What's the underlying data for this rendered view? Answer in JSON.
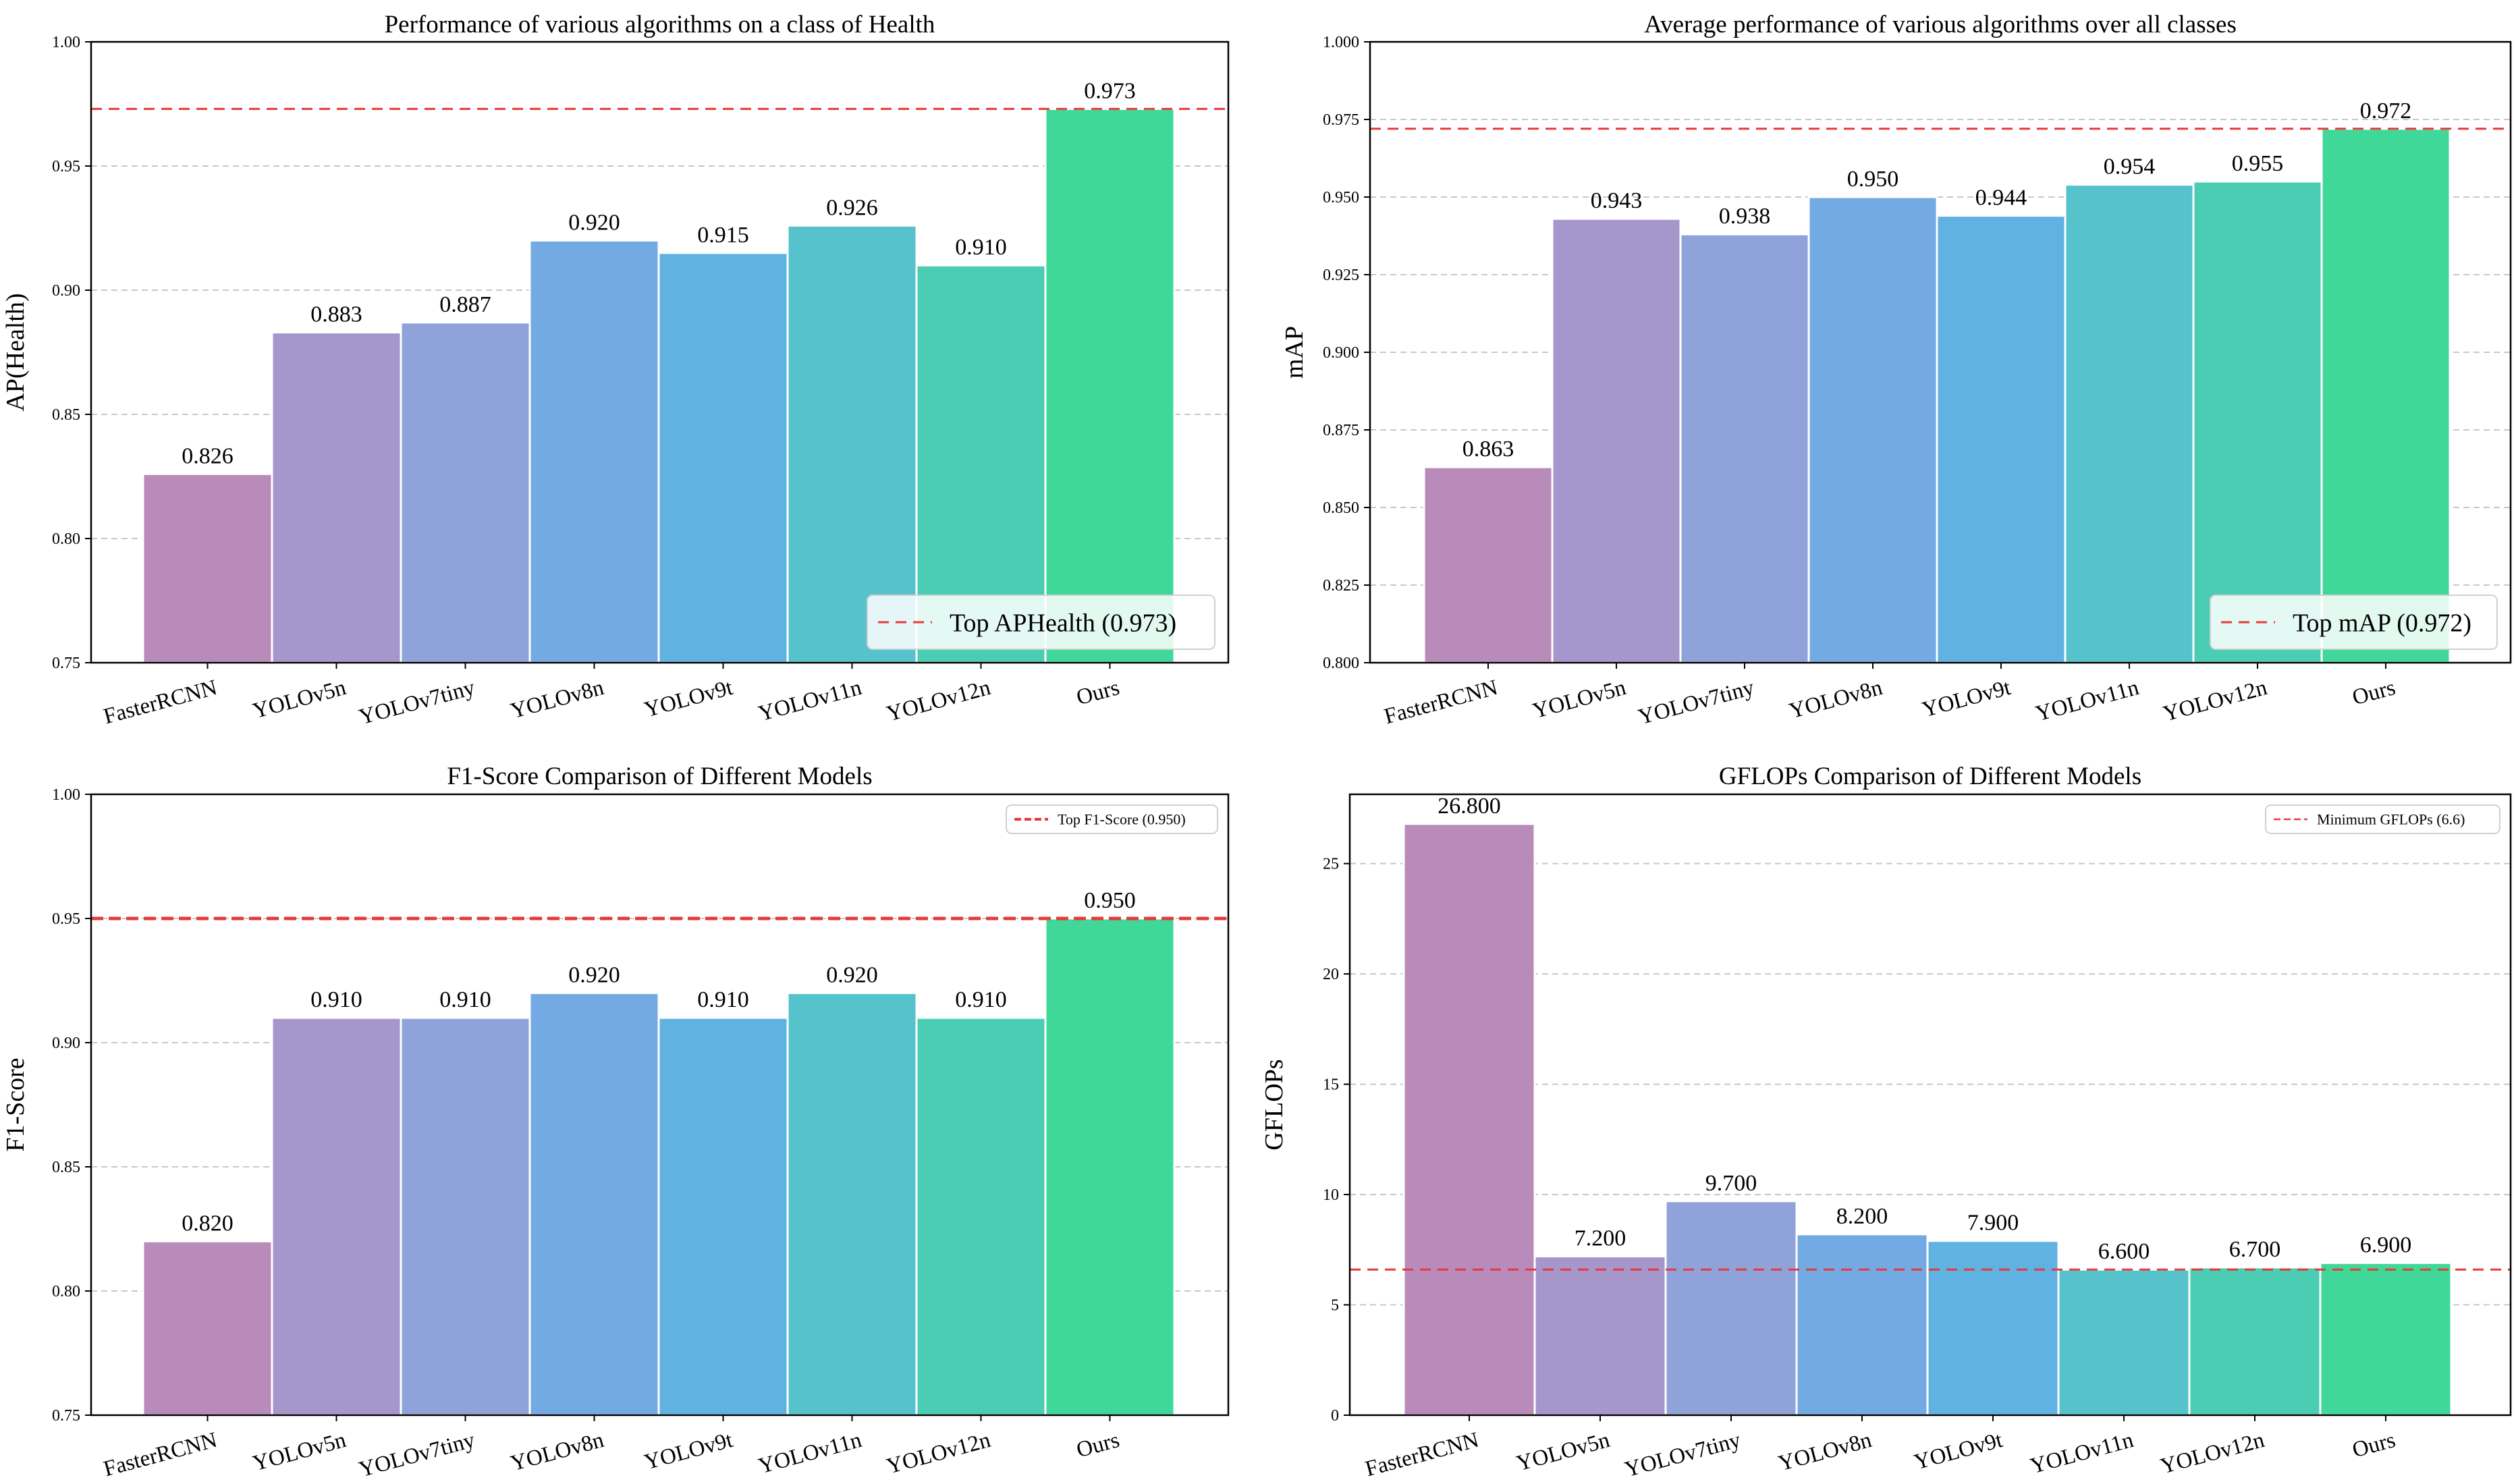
{
  "colors": {
    "bars": [
      "#b98bbb",
      "#a597cb",
      "#8fa2d9",
      "#74aae3",
      "#5fb2e1",
      "#56c2cc",
      "#4acdb2",
      "#3fd899"
    ],
    "reference_line": "#e8383a",
    "grid": "#c8c8c8",
    "frame": "#000000"
  },
  "chart_data": [
    {
      "type": "bar",
      "title": "Performance of various algorithms on a class of Health",
      "xlabel": "",
      "ylabel": "AP(Health)",
      "categories": [
        "FasterRCNN",
        "YOLOv5n",
        "YOLOv7tiny",
        "YOLOv8n",
        "YOLOv9t",
        "YOLOv11n",
        "YOLOv12n",
        "Ours"
      ],
      "values": [
        0.826,
        0.883,
        0.887,
        0.92,
        0.915,
        0.926,
        0.91,
        0.973
      ],
      "value_labels": [
        "0.826",
        "0.883",
        "0.887",
        "0.920",
        "0.915",
        "0.926",
        "0.910",
        "0.973"
      ],
      "ylim": [
        0.75,
        1.0
      ],
      "yticks": [
        0.75,
        0.8,
        0.85,
        0.9,
        0.95,
        1.0
      ],
      "ytick_labels": [
        "0.75",
        "0.80",
        "0.85",
        "0.90",
        "0.95",
        "1.00"
      ],
      "reference_line": {
        "value": 0.973,
        "style": "dashed",
        "label": "Top APHealth (0.973)"
      },
      "legend": {
        "placement": "lower-right",
        "size": "large"
      },
      "grid": "y-dashed"
    },
    {
      "type": "bar",
      "title": "Average performance of various algorithms over all classes",
      "xlabel": "",
      "ylabel": "mAP",
      "categories": [
        "FasterRCNN",
        "YOLOv5n",
        "YOLOv7tiny",
        "YOLOv8n",
        "YOLOv9t",
        "YOLOv11n",
        "YOLOv12n",
        "Ours"
      ],
      "values": [
        0.863,
        0.943,
        0.938,
        0.95,
        0.944,
        0.954,
        0.955,
        0.972
      ],
      "value_labels": [
        "0.863",
        "0.943",
        "0.938",
        "0.950",
        "0.944",
        "0.954",
        "0.955",
        "0.972"
      ],
      "ylim": [
        0.8,
        1.0
      ],
      "yticks": [
        0.8,
        0.825,
        0.85,
        0.875,
        0.9,
        0.925,
        0.95,
        0.975,
        1.0
      ],
      "ytick_labels": [
        "0.800",
        "0.825",
        "0.850",
        "0.875",
        "0.900",
        "0.925",
        "0.950",
        "0.975",
        "1.000"
      ],
      "reference_line": {
        "value": 0.972,
        "style": "dashed",
        "label": "Top mAP (0.972)"
      },
      "legend": {
        "placement": "lower-right",
        "size": "large"
      },
      "grid": "y-dashed"
    },
    {
      "type": "bar",
      "title": "F1-Score Comparison of Different Models",
      "xlabel": "",
      "ylabel": "F1-Score",
      "categories": [
        "FasterRCNN",
        "YOLOv5n",
        "YOLOv7tiny",
        "YOLOv8n",
        "YOLOv9t",
        "YOLOv11n",
        "YOLOv12n",
        "Ours"
      ],
      "values": [
        0.82,
        0.91,
        0.91,
        0.92,
        0.91,
        0.92,
        0.91,
        0.95
      ],
      "value_labels": [
        "0.820",
        "0.910",
        "0.910",
        "0.920",
        "0.910",
        "0.920",
        "0.910",
        "0.950"
      ],
      "ylim": [
        0.75,
        1.0
      ],
      "yticks": [
        0.75,
        0.8,
        0.85,
        0.9,
        0.95,
        1.0
      ],
      "ytick_labels": [
        "0.75",
        "0.80",
        "0.85",
        "0.90",
        "0.95",
        "1.00"
      ],
      "reference_line": {
        "value": 0.95,
        "style": "bold-dashed",
        "label": "Top F1-Score (0.950)"
      },
      "legend": {
        "placement": "upper-right",
        "size": "small"
      },
      "grid": "y-dashed"
    },
    {
      "type": "bar",
      "title": "GFLOPs Comparison of Different Models",
      "xlabel": "",
      "ylabel": "GFLOPs",
      "categories": [
        "FasterRCNN",
        "YOLOv5n",
        "YOLOv7tiny",
        "YOLOv8n",
        "YOLOv9t",
        "YOLOv11n",
        "YOLOv12n",
        "Ours"
      ],
      "values": [
        26.8,
        7.2,
        9.7,
        8.2,
        7.9,
        6.6,
        6.7,
        6.9
      ],
      "value_labels": [
        "26.800",
        "7.200",
        "9.700",
        "8.200",
        "7.900",
        "6.600",
        "6.700",
        "6.900"
      ],
      "ylim": [
        0,
        28.14
      ],
      "yticks": [
        0,
        5,
        10,
        15,
        20,
        25
      ],
      "ytick_labels": [
        "0",
        "5",
        "10",
        "15",
        "20",
        "25"
      ],
      "reference_line": {
        "value": 6.6,
        "style": "dashed",
        "label": "Minimum GFLOPs (6.6)"
      },
      "legend": {
        "placement": "upper-right",
        "size": "small"
      },
      "grid": "y-dashed"
    }
  ]
}
